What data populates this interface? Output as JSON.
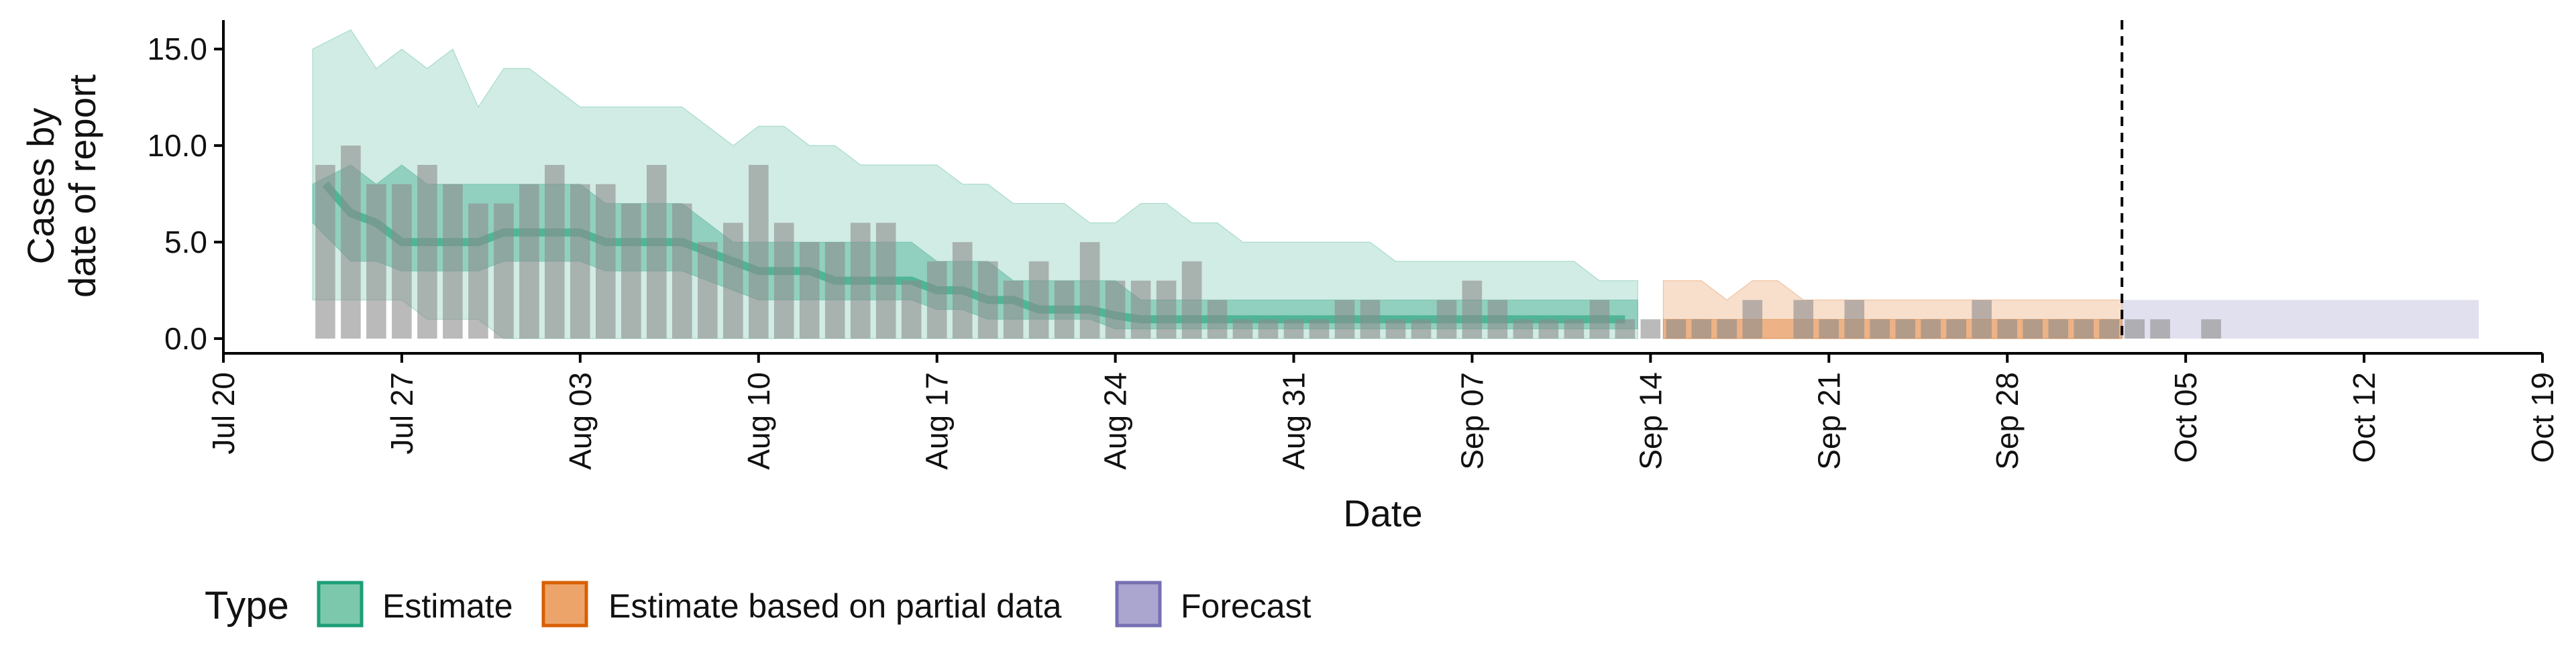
{
  "chart_data": {
    "type": "bar",
    "xlabel": "Date",
    "ylabel_lines": [
      "Cases by",
      "date of report"
    ],
    "x_range": [
      "2020-07-20",
      "2020-10-19"
    ],
    "ylim": [
      0,
      16.5
    ],
    "y_ticks": [
      0,
      5,
      10,
      15
    ],
    "y_tick_labels": [
      "0.0",
      "5.0",
      "10.0",
      "15.0"
    ],
    "x_ticks": [
      {
        "date": "2020-07-20",
        "label": "Jul 20"
      },
      {
        "date": "2020-07-27",
        "label": "Jul 27"
      },
      {
        "date": "2020-08-03",
        "label": "Aug 03"
      },
      {
        "date": "2020-08-10",
        "label": "Aug 10"
      },
      {
        "date": "2020-08-17",
        "label": "Aug 17"
      },
      {
        "date": "2020-08-24",
        "label": "Aug 24"
      },
      {
        "date": "2020-08-31",
        "label": "Aug 31"
      },
      {
        "date": "2020-09-07",
        "label": "Sep 07"
      },
      {
        "date": "2020-09-14",
        "label": "Sep 14"
      },
      {
        "date": "2020-09-21",
        "label": "Sep 21"
      },
      {
        "date": "2020-09-28",
        "label": "Sep 28"
      },
      {
        "date": "2020-10-05",
        "label": "Oct 05"
      },
      {
        "date": "2020-10-12",
        "label": "Oct 12"
      },
      {
        "date": "2020-10-19",
        "label": "Oct 19"
      }
    ],
    "forecast_line_date": "2020-10-02",
    "grid": false,
    "legend_position": "bottom-left",
    "legend": {
      "title": "Type",
      "items": [
        {
          "label": "Estimate",
          "fill": "#7cc8ad",
          "stroke": "#1b9e77"
        },
        {
          "label": "Estimate based on partial data",
          "fill": "#eda46a",
          "stroke": "#d95f02"
        },
        {
          "label": "Forecast",
          "fill": "#aaa6d0",
          "stroke": "#7570b3"
        }
      ]
    },
    "colors": {
      "estimate": "#1b9e77",
      "partial": "#d95f02",
      "forecast": "#7570b3",
      "bars": "#8c8c8c"
    },
    "reported_cases": {
      "start_date": "2020-07-24",
      "values": [
        9,
        10,
        8,
        8,
        9,
        8,
        7,
        7,
        8,
        9,
        8,
        8,
        7,
        9,
        7,
        5,
        6,
        9,
        6,
        5,
        5,
        6,
        6,
        3,
        4,
        5,
        4,
        3,
        4,
        3,
        5,
        3,
        3,
        3,
        4,
        2,
        1,
        1,
        1,
        1,
        2,
        2,
        1,
        1,
        2,
        3,
        2,
        1,
        1,
        1,
        2,
        1,
        1,
        1,
        1,
        1,
        2,
        0,
        2,
        1,
        2,
        1,
        1,
        1,
        1,
        2,
        1,
        1,
        1,
        1,
        1,
        1,
        1,
        0,
        1
      ]
    },
    "estimate": {
      "start_date": "2020-07-24",
      "end_date": "2020-09-13",
      "median": [
        8,
        6.5,
        6,
        5,
        5,
        5,
        5,
        5.5,
        5.5,
        5.5,
        5.5,
        5,
        5,
        5,
        5,
        4.5,
        4,
        3.5,
        3.5,
        3.5,
        3,
        3,
        3,
        3,
        2.5,
        2.5,
        2,
        2,
        1.5,
        1.5,
        1.5,
        1.2,
        1,
        1,
        1,
        1,
        1,
        1,
        1,
        1,
        1,
        1,
        1,
        1,
        1,
        1,
        1,
        1,
        1,
        1,
        1,
        1
      ],
      "ci50_lower": [
        6,
        4,
        4,
        3.5,
        3.5,
        3.5,
        3.5,
        4,
        4,
        4,
        4,
        3.5,
        3.5,
        3.5,
        3.5,
        3,
        2.5,
        2,
        2,
        2,
        2,
        2,
        2,
        2,
        1.5,
        1.5,
        1,
        1,
        1,
        1,
        1,
        0.5,
        0.5,
        0.5,
        0.5,
        0.5,
        0.5,
        0.5,
        0.5,
        0.5,
        0.5,
        0.5,
        0.5,
        0.5,
        0.5,
        0.5,
        0.5,
        0.5,
        0.5,
        0.5,
        0.5,
        0.5
      ],
      "ci50_upper": [
        8,
        9,
        8,
        9,
        8,
        8,
        8,
        8,
        8,
        8,
        8,
        7,
        7,
        7,
        7,
        6,
        5,
        5,
        5,
        5,
        5,
        5,
        5,
        5,
        4,
        4,
        4,
        3,
        3,
        3,
        3,
        3,
        2,
        2,
        2,
        2,
        2,
        2,
        2,
        2,
        2,
        2,
        2,
        2,
        2,
        2,
        2,
        2,
        2,
        2,
        2,
        2
      ],
      "ci90_lower": [
        2,
        2,
        2,
        2,
        1,
        1,
        1,
        0,
        0,
        0,
        0,
        0,
        0,
        0,
        0,
        0,
        0,
        0,
        0,
        0,
        0,
        0,
        0,
        0,
        0,
        0,
        0,
        0,
        0,
        0,
        0,
        0,
        0,
        0,
        0,
        0,
        0,
        0,
        0,
        0,
        0,
        0,
        0,
        0,
        0,
        0,
        0,
        0,
        0,
        0,
        0,
        0
      ],
      "ci90_upper": [
        15,
        16,
        14,
        15,
        14,
        15,
        12,
        14,
        14,
        13,
        12,
        12,
        12,
        12,
        12,
        11,
        10,
        11,
        11,
        10,
        10,
        9,
        9,
        9,
        9,
        8,
        8,
        7,
        7,
        7,
        6,
        6,
        7,
        7,
        6,
        6,
        5,
        5,
        5,
        5,
        5,
        5,
        4,
        4,
        4,
        4,
        4,
        4,
        4,
        4,
        3,
        3
      ]
    },
    "partial_estimate": {
      "start_date": "2020-09-15",
      "end_date": "2020-10-02",
      "median": [
        1,
        1,
        1,
        1,
        1,
        1,
        1,
        1,
        1,
        1,
        1,
        1,
        1,
        1,
        1,
        1,
        1,
        1
      ],
      "ci50_lower": [
        0,
        0,
        0,
        0,
        0,
        0,
        0,
        0,
        0,
        0,
        0,
        0,
        0,
        0,
        0,
        0,
        0,
        0
      ],
      "ci50_upper": [
        1,
        1,
        1,
        1,
        1,
        1,
        1,
        1,
        1,
        1,
        1,
        1,
        1,
        1,
        1,
        1,
        1,
        1
      ],
      "ci90_lower": [
        0,
        0,
        0,
        0,
        0,
        0,
        0,
        0,
        0,
        0,
        0,
        0,
        0,
        0,
        0,
        0,
        0,
        0
      ],
      "ci90_upper": [
        3,
        3,
        2,
        3,
        3,
        2,
        2,
        2,
        2,
        2,
        2,
        2,
        2,
        2,
        2,
        2,
        2,
        2
      ]
    },
    "forecast": {
      "start_date": "2020-10-03",
      "end_date": "2020-10-16",
      "ci90_lower": 0,
      "ci90_upper": 2,
      "ci50_lower": 0,
      "ci50_upper": 1
    }
  }
}
